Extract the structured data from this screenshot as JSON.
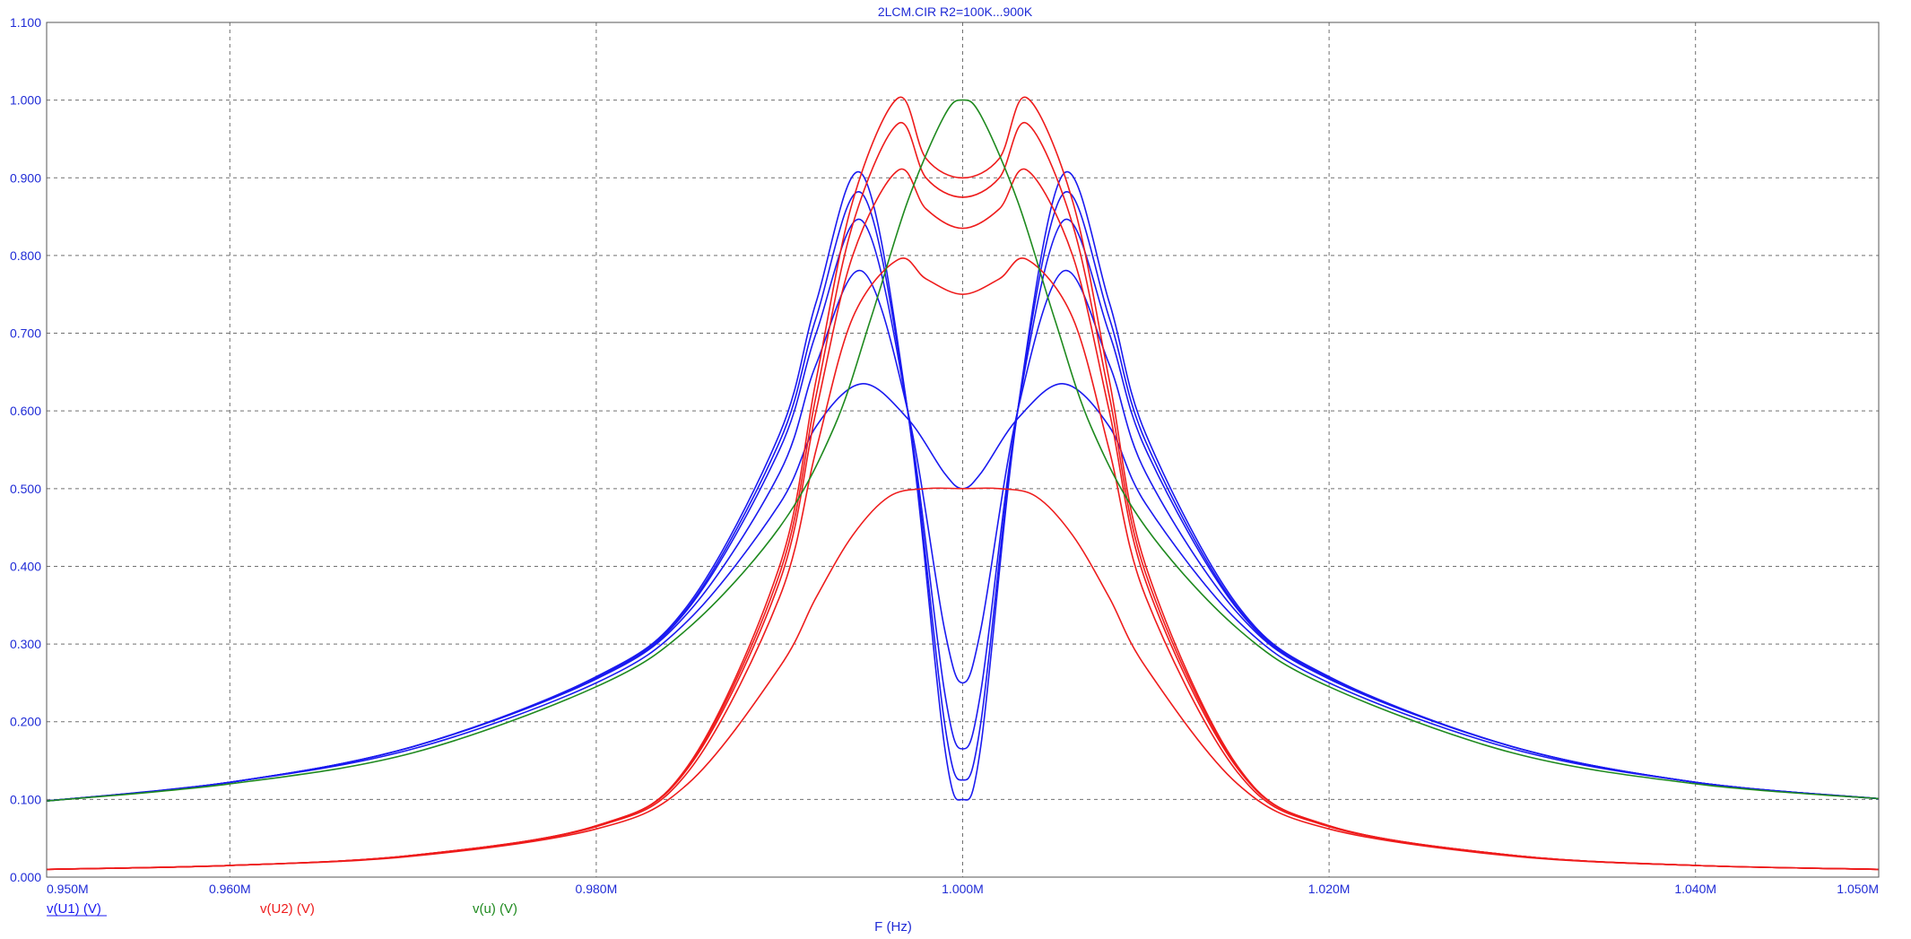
{
  "chart_data": {
    "type": "line",
    "title": "2LCM.CIR R2=100K...900K",
    "xlabel": "F (Hz)",
    "ylabel": "",
    "xlim": [
      0.95,
      1.05
    ],
    "ylim": [
      0,
      1.1
    ],
    "x_unit": "MHz",
    "grid": true,
    "x_ticks": [
      "0.950M",
      "0.960M",
      "0.980M",
      "1.000M",
      "1.020M",
      "1.040M",
      "1.050M"
    ],
    "x_tick_values": [
      0.95,
      0.96,
      0.98,
      1.0,
      1.02,
      1.04,
      1.05
    ],
    "y_ticks": [
      "0.000",
      "0.100",
      "0.200",
      "0.300",
      "0.400",
      "0.500",
      "0.600",
      "0.700",
      "0.800",
      "0.900",
      "1.000",
      "1.100"
    ],
    "y_tick_values": [
      0,
      0.1,
      0.2,
      0.3,
      0.4,
      0.5,
      0.6,
      0.7,
      0.8,
      0.9,
      1.0,
      1.1
    ],
    "legend": [
      {
        "label": "v(U1) (V)",
        "color": "#1a1af0"
      },
      {
        "label": "v(U2) (V)",
        "color": "#ee1c1c"
      },
      {
        "label": "v(u) (V)",
        "color": "#1f8a1f"
      }
    ],
    "legend_placement": "bottom-left",
    "series": [
      {
        "group": "v(U1) (V)",
        "color": "#1a1af0",
        "x": [
          0.95,
          0.96,
          0.97,
          0.98,
          0.985,
          0.99,
          0.992,
          0.9945,
          0.997,
          0.999,
          1.0,
          1.001,
          1.003,
          1.0055,
          1.008,
          1.01,
          1.015,
          1.02,
          1.03,
          1.04,
          1.05
        ],
        "y": [
          0.098,
          0.122,
          0.165,
          0.25,
          0.33,
          0.48,
          0.58,
          0.635,
          0.59,
          0.52,
          0.5,
          0.52,
          0.59,
          0.635,
          0.58,
          0.48,
          0.33,
          0.25,
          0.165,
          0.122,
          0.101
        ]
      },
      {
        "group": "v(U1) (V)",
        "color": "#1a1af0",
        "x": [
          0.95,
          0.96,
          0.97,
          0.98,
          0.985,
          0.99,
          0.992,
          0.9945,
          0.997,
          0.999,
          1.0,
          1.001,
          1.003,
          1.0055,
          1.008,
          1.01,
          1.015,
          1.02,
          1.03,
          1.04,
          1.05
        ],
        "y": [
          0.098,
          0.122,
          0.168,
          0.255,
          0.34,
          0.52,
          0.66,
          0.78,
          0.6,
          0.32,
          0.25,
          0.32,
          0.6,
          0.78,
          0.66,
          0.52,
          0.34,
          0.255,
          0.168,
          0.122,
          0.101
        ]
      },
      {
        "group": "v(U1) (V)",
        "color": "#1a1af0",
        "x": [
          0.95,
          0.96,
          0.97,
          0.98,
          0.985,
          0.99,
          0.992,
          0.9945,
          0.997,
          0.999,
          1.0,
          1.001,
          1.003,
          1.0055,
          1.008,
          1.01,
          1.015,
          1.02,
          1.03,
          1.04,
          1.05
        ],
        "y": [
          0.098,
          0.122,
          0.168,
          0.256,
          0.345,
          0.55,
          0.7,
          0.845,
          0.6,
          0.24,
          0.165,
          0.24,
          0.6,
          0.845,
          0.7,
          0.55,
          0.345,
          0.256,
          0.168,
          0.122,
          0.101
        ]
      },
      {
        "group": "v(U1) (V)",
        "color": "#1a1af0",
        "x": [
          0.95,
          0.96,
          0.97,
          0.98,
          0.985,
          0.99,
          0.992,
          0.9945,
          0.997,
          0.999,
          1.0,
          1.001,
          1.003,
          1.0055,
          1.008,
          1.01,
          1.015,
          1.02,
          1.03,
          1.04,
          1.05
        ],
        "y": [
          0.098,
          0.122,
          0.168,
          0.257,
          0.347,
          0.56,
          0.72,
          0.88,
          0.6,
          0.2,
          0.125,
          0.2,
          0.6,
          0.88,
          0.72,
          0.56,
          0.347,
          0.257,
          0.168,
          0.122,
          0.101
        ]
      },
      {
        "group": "v(U1) (V)",
        "color": "#1a1af0",
        "x": [
          0.95,
          0.96,
          0.97,
          0.98,
          0.985,
          0.99,
          0.992,
          0.9945,
          0.997,
          0.999,
          1.0,
          1.001,
          1.003,
          1.0055,
          1.008,
          1.01,
          1.015,
          1.02,
          1.03,
          1.04,
          1.05
        ],
        "y": [
          0.098,
          0.122,
          0.168,
          0.258,
          0.35,
          0.57,
          0.74,
          0.905,
          0.6,
          0.17,
          0.1,
          0.17,
          0.6,
          0.905,
          0.74,
          0.57,
          0.35,
          0.258,
          0.168,
          0.122,
          0.101
        ]
      },
      {
        "group": "v(U2) (V)",
        "color": "#ee1c1c",
        "x": [
          0.95,
          0.96,
          0.97,
          0.98,
          0.985,
          0.99,
          0.992,
          0.994,
          0.996,
          0.998,
          1.0,
          1.002,
          1.004,
          1.006,
          1.008,
          1.01,
          1.015,
          1.02,
          1.03,
          1.04,
          1.05
        ],
        "y": [
          0.01,
          0.015,
          0.027,
          0.062,
          0.12,
          0.27,
          0.36,
          0.44,
          0.49,
          0.5,
          0.5,
          0.5,
          0.49,
          0.44,
          0.36,
          0.27,
          0.12,
          0.062,
          0.027,
          0.015,
          0.01
        ]
      },
      {
        "group": "v(U2) (V)",
        "color": "#ee1c1c",
        "x": [
          0.95,
          0.96,
          0.97,
          0.98,
          0.985,
          0.99,
          0.992,
          0.994,
          0.9965,
          0.998,
          1.0,
          1.002,
          1.0035,
          1.006,
          1.008,
          1.01,
          1.015,
          1.02,
          1.03,
          1.04,
          1.05
        ],
        "y": [
          0.01,
          0.015,
          0.028,
          0.065,
          0.135,
          0.36,
          0.55,
          0.72,
          0.795,
          0.77,
          0.75,
          0.77,
          0.795,
          0.72,
          0.55,
          0.36,
          0.135,
          0.065,
          0.028,
          0.015,
          0.01
        ]
      },
      {
        "group": "v(U2) (V)",
        "color": "#ee1c1c",
        "x": [
          0.95,
          0.96,
          0.97,
          0.98,
          0.985,
          0.99,
          0.992,
          0.994,
          0.9965,
          0.998,
          1.0,
          1.002,
          1.0035,
          1.006,
          1.008,
          1.01,
          1.015,
          1.02,
          1.03,
          1.04,
          1.05
        ],
        "y": [
          0.01,
          0.015,
          0.028,
          0.066,
          0.14,
          0.38,
          0.6,
          0.8,
          0.91,
          0.86,
          0.835,
          0.86,
          0.91,
          0.8,
          0.6,
          0.38,
          0.14,
          0.066,
          0.028,
          0.015,
          0.01
        ]
      },
      {
        "group": "v(U2) (V)",
        "color": "#ee1c1c",
        "x": [
          0.95,
          0.96,
          0.97,
          0.98,
          0.985,
          0.99,
          0.992,
          0.994,
          0.9965,
          0.998,
          1.0,
          1.002,
          1.0035,
          1.006,
          1.008,
          1.01,
          1.015,
          1.02,
          1.03,
          1.04,
          1.05
        ],
        "y": [
          0.01,
          0.015,
          0.028,
          0.066,
          0.142,
          0.39,
          0.62,
          0.84,
          0.97,
          0.9,
          0.875,
          0.9,
          0.97,
          0.84,
          0.62,
          0.39,
          0.142,
          0.066,
          0.028,
          0.015,
          0.01
        ]
      },
      {
        "group": "v(U2) (V)",
        "color": "#ee1c1c",
        "x": [
          0.95,
          0.96,
          0.97,
          0.98,
          0.985,
          0.99,
          0.992,
          0.994,
          0.9965,
          0.998,
          1.0,
          1.002,
          1.0035,
          1.006,
          1.008,
          1.01,
          1.015,
          1.02,
          1.03,
          1.04,
          1.05
        ],
        "y": [
          0.01,
          0.015,
          0.028,
          0.066,
          0.143,
          0.4,
          0.64,
          0.87,
          1.003,
          0.925,
          0.9,
          0.925,
          1.003,
          0.87,
          0.64,
          0.4,
          0.143,
          0.066,
          0.028,
          0.015,
          0.01
        ]
      },
      {
        "group": "v(u) (V)",
        "color": "#1f8a1f",
        "x": [
          0.95,
          0.96,
          0.97,
          0.98,
          0.985,
          0.99,
          0.993,
          0.995,
          0.997,
          0.999,
          1.0,
          1.001,
          1.003,
          1.005,
          1.007,
          1.01,
          1.015,
          1.02,
          1.03,
          1.04,
          1.05
        ],
        "y": [
          0.098,
          0.12,
          0.16,
          0.245,
          0.32,
          0.45,
          0.58,
          0.72,
          0.87,
          0.98,
          1.0,
          0.98,
          0.87,
          0.72,
          0.58,
          0.45,
          0.32,
          0.245,
          0.16,
          0.12,
          0.101
        ]
      }
    ]
  }
}
